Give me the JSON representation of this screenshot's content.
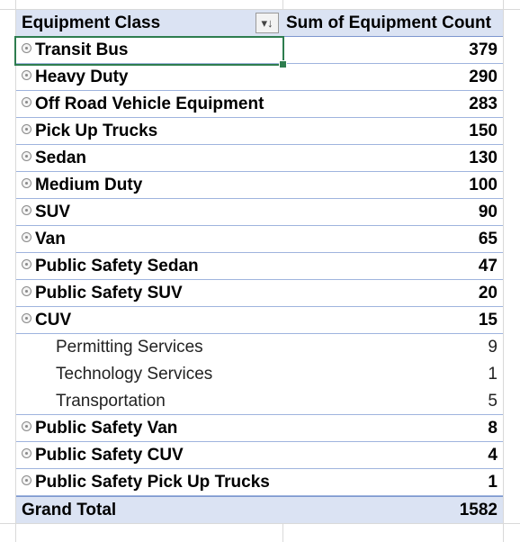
{
  "pivot": {
    "header": {
      "label": "Equipment Class",
      "value_label": "Sum of Equipment Count",
      "filter_icon": "sort-filter-icon",
      "filter_glyph": "▾↓"
    },
    "rows": [
      {
        "label": "Transit Bus",
        "value": "379",
        "level": 0,
        "expander": true
      },
      {
        "label": "Heavy Duty",
        "value": "290",
        "level": 0,
        "expander": true
      },
      {
        "label": "Off Road Vehicle Equipment",
        "value": "283",
        "level": 0,
        "expander": true
      },
      {
        "label": "Pick Up Trucks",
        "value": "150",
        "level": 0,
        "expander": true
      },
      {
        "label": "Sedan",
        "value": "130",
        "level": 0,
        "expander": true
      },
      {
        "label": "Medium Duty",
        "value": "100",
        "level": 0,
        "expander": true
      },
      {
        "label": "SUV",
        "value": "90",
        "level": 0,
        "expander": true
      },
      {
        "label": "Van",
        "value": "65",
        "level": 0,
        "expander": true
      },
      {
        "label": "Public Safety Sedan",
        "value": "47",
        "level": 0,
        "expander": true
      },
      {
        "label": "Public Safety SUV",
        "value": "20",
        "level": 0,
        "expander": true
      },
      {
        "label": "CUV",
        "value": "15",
        "level": 0,
        "expander": true
      },
      {
        "label": "Permitting Services",
        "value": "9",
        "level": 1,
        "expander": false
      },
      {
        "label": "Technology Services",
        "value": "1",
        "level": 1,
        "expander": false
      },
      {
        "label": "Transportation",
        "value": "5",
        "level": 1,
        "expander": false
      },
      {
        "label": "Public Safety Van",
        "value": "8",
        "level": 0,
        "expander": true
      },
      {
        "label": "Public Safety CUV",
        "value": "4",
        "level": 0,
        "expander": true
      },
      {
        "label": "Public Safety Pick Up Trucks",
        "value": "1",
        "level": 0,
        "expander": true
      }
    ],
    "grand_total": {
      "label": "Grand Total",
      "value": "1582"
    }
  },
  "colors": {
    "header_bg": "#dbe3f3",
    "row_border": "#9fb4de",
    "selection": "#2e7d4f",
    "grid": "#d9d9d9"
  }
}
